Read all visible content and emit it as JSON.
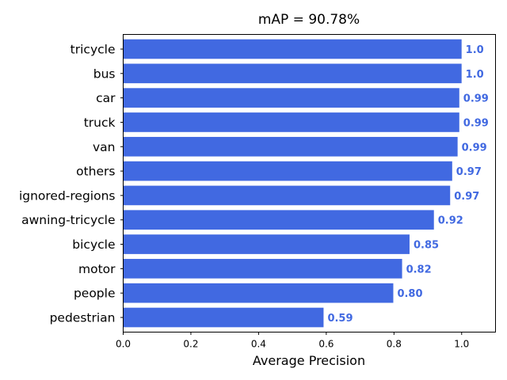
{
  "chart_data": {
    "type": "bar",
    "orientation": "horizontal",
    "title": "mAP = 90.78%",
    "xlabel": "Average Precision",
    "ylabel": "",
    "xlim": [
      0,
      1.1
    ],
    "xticks": [
      "0.0",
      "0.2",
      "0.4",
      "0.6",
      "0.8",
      "1.0"
    ],
    "grid": false,
    "legend": "none",
    "bar_color": "#4169e1",
    "categories": [
      "tricycle",
      "bus",
      "car",
      "truck",
      "van",
      "others",
      "ignored-regions",
      "awning-tricycle",
      "bicycle",
      "motor",
      "people",
      "pedestrian"
    ],
    "values": [
      0.9998,
      0.9998,
      0.993,
      0.993,
      0.988,
      0.972,
      0.966,
      0.918,
      0.846,
      0.824,
      0.798,
      0.592
    ],
    "value_labels": [
      "1.0",
      "1.0",
      "0.99",
      "0.99",
      "0.99",
      "0.97",
      "0.97",
      "0.92",
      "0.85",
      "0.82",
      "0.80",
      "0.59"
    ]
  }
}
